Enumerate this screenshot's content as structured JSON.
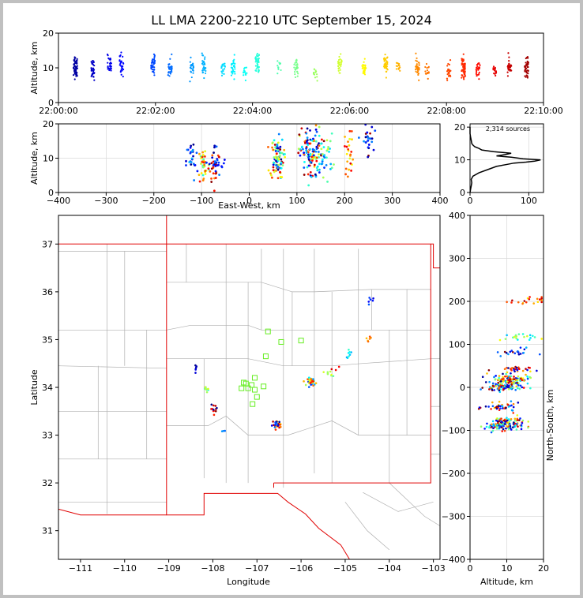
{
  "title": "LL LMA 2200-2210 UTC September 15, 2024",
  "chart_data": [
    {
      "type": "scatter",
      "panel": "altitude-vs-time",
      "ylabel": "Altitude, km",
      "ylim": [
        0,
        20
      ],
      "yticks": [
        "0",
        "10",
        "20"
      ],
      "xlim_minutes": [
        0,
        10
      ],
      "xticks": [
        "22:00:00",
        "22:02:00",
        "22:04:00",
        "22:06:00",
        "22:08:00",
        "22:10:00"
      ],
      "color_by": "time",
      "series": [
        {
          "minute": 0.35,
          "center": 10.5,
          "spread": 3.5,
          "count": 60
        },
        {
          "minute": 0.7,
          "center": 9.5,
          "spread": 3,
          "count": 30
        },
        {
          "minute": 1.05,
          "center": 11,
          "spread": 3,
          "count": 25
        },
        {
          "minute": 1.3,
          "center": 11,
          "spread": 3.5,
          "count": 30
        },
        {
          "minute": 1.95,
          "center": 11,
          "spread": 3,
          "count": 40
        },
        {
          "minute": 2.3,
          "center": 10,
          "spread": 3,
          "count": 30
        },
        {
          "minute": 2.75,
          "center": 10,
          "spread": 2.5,
          "count": 25
        },
        {
          "minute": 3.0,
          "center": 10.5,
          "spread": 3,
          "count": 30
        },
        {
          "minute": 3.4,
          "center": 9.5,
          "spread": 3,
          "count": 20
        },
        {
          "minute": 3.6,
          "center": 10,
          "spread": 3,
          "count": 30
        },
        {
          "minute": 3.85,
          "center": 9,
          "spread": 2,
          "count": 15
        },
        {
          "minute": 4.1,
          "center": 11,
          "spread": 4,
          "count": 40
        },
        {
          "minute": 4.55,
          "center": 10,
          "spread": 2,
          "count": 10
        },
        {
          "minute": 4.9,
          "center": 10,
          "spread": 2.5,
          "count": 25
        },
        {
          "minute": 5.3,
          "center": 8,
          "spread": 1.5,
          "count": 15
        },
        {
          "minute": 5.8,
          "center": 11,
          "spread": 3,
          "count": 30
        },
        {
          "minute": 6.3,
          "center": 10,
          "spread": 3,
          "count": 30
        },
        {
          "minute": 6.75,
          "center": 11,
          "spread": 3,
          "count": 40
        },
        {
          "minute": 7.0,
          "center": 10,
          "spread": 2,
          "count": 15
        },
        {
          "minute": 7.4,
          "center": 10,
          "spread": 3,
          "count": 30
        },
        {
          "minute": 7.6,
          "center": 9,
          "spread": 2,
          "count": 15
        },
        {
          "minute": 8.05,
          "center": 9,
          "spread": 3,
          "count": 25
        },
        {
          "minute": 8.35,
          "center": 10,
          "spread": 3.5,
          "count": 60
        },
        {
          "minute": 8.65,
          "center": 9.5,
          "spread": 2.5,
          "count": 25
        },
        {
          "minute": 9.0,
          "center": 9,
          "spread": 2,
          "count": 15
        },
        {
          "minute": 9.3,
          "center": 10,
          "spread": 3,
          "count": 25
        },
        {
          "minute": 9.65,
          "center": 10,
          "spread": 3,
          "count": 45
        }
      ]
    },
    {
      "type": "scatter",
      "panel": "altitude-vs-east-west",
      "ylabel": "Altitude, km",
      "xlabel": "East-West, km",
      "xlim": [
        -400,
        400
      ],
      "ylim": [
        0,
        20
      ],
      "xticks": [
        "−400",
        "−300",
        "−200",
        "−100",
        "0",
        "100",
        "200",
        "300",
        "400"
      ],
      "yticks": [
        "0",
        "10",
        "20"
      ],
      "clusters": [
        {
          "x": -120,
          "alt": 9,
          "xs": 6,
          "as": 3,
          "count": 25
        },
        {
          "x": -95,
          "alt": 8,
          "xs": 6,
          "as": 3,
          "count": 40
        },
        {
          "x": -72,
          "alt": 8,
          "xs": 6,
          "as": 3,
          "count": 40
        },
        {
          "x": -58,
          "alt": 8.5,
          "xs": 4,
          "as": 1,
          "count": 5
        },
        {
          "x": 58,
          "alt": 10,
          "xs": 7,
          "as": 3,
          "count": 90
        },
        {
          "x": 130,
          "alt": 11,
          "xs": 12,
          "as": 4,
          "count": 120
        },
        {
          "x": 160,
          "alt": 11,
          "xs": 8,
          "as": 3,
          "count": 30
        },
        {
          "x": 210,
          "alt": 12,
          "xs": 5,
          "as": 3.5,
          "count": 25
        },
        {
          "x": 248,
          "alt": 15,
          "xs": 6,
          "as": 2.5,
          "count": 25
        }
      ]
    },
    {
      "type": "line",
      "panel": "altitude-histogram",
      "annotation": "2,314 sources",
      "xlim": [
        0,
        125
      ],
      "ylim": [
        0,
        21
      ],
      "xticks": [
        "0",
        "100"
      ],
      "yticks": [
        "0",
        "10",
        "20"
      ],
      "x": [
        0,
        1,
        2,
        3,
        2,
        5,
        15,
        30,
        45,
        60,
        75,
        95,
        110,
        120,
        90,
        70,
        45,
        60,
        70,
        40,
        20,
        15,
        8,
        5,
        3,
        2,
        1,
        0,
        0
      ],
      "y": [
        0,
        1,
        2,
        3,
        4,
        5,
        6,
        7,
        8,
        8.5,
        9,
        9.3,
        9.6,
        10,
        10.3,
        10.8,
        11.2,
        11.6,
        12,
        12.5,
        13,
        13.5,
        14,
        14.5,
        15,
        16,
        17,
        18,
        20
      ]
    },
    {
      "type": "scatter",
      "panel": "plan-view-map",
      "xlabel": "Longitude",
      "ylabel": "Latitude",
      "xlim": [
        -111.5,
        -102.85
      ],
      "ylim": [
        30.4,
        37.6
      ],
      "xticks": [
        "−111",
        "−110",
        "−109",
        "−108",
        "−107",
        "−106",
        "−105",
        "−104",
        "−103"
      ],
      "yticks": [
        "31",
        "32",
        "33",
        "34",
        "35",
        "36",
        "37"
      ],
      "stations": [
        {
          "lon": -106.75,
          "lat": 35.17
        },
        {
          "lon": -106.45,
          "lat": 34.95
        },
        {
          "lon": -106.0,
          "lat": 34.98
        },
        {
          "lon": -106.8,
          "lat": 34.65
        },
        {
          "lon": -107.05,
          "lat": 34.2
        },
        {
          "lon": -107.25,
          "lat": 34.08
        },
        {
          "lon": -107.12,
          "lat": 34.05
        },
        {
          "lon": -107.35,
          "lat": 33.98
        },
        {
          "lon": -107.2,
          "lat": 33.98
        },
        {
          "lon": -107.05,
          "lat": 33.95
        },
        {
          "lon": -106.85,
          "lat": 34.02
        },
        {
          "lon": -107.0,
          "lat": 33.8
        },
        {
          "lon": -107.1,
          "lat": 33.65
        },
        {
          "lon": -107.3,
          "lat": 34.1
        }
      ],
      "clusters": [
        {
          "lon": -108.4,
          "lat": 34.4,
          "count": 6
        },
        {
          "lon": -108.15,
          "lat": 33.98,
          "count": 10
        },
        {
          "lon": -107.95,
          "lat": 33.55,
          "count": 12
        },
        {
          "lon": -107.75,
          "lat": 33.05,
          "count": 3
        },
        {
          "lon": -106.55,
          "lat": 33.22,
          "count": 30
        },
        {
          "lon": -105.75,
          "lat": 34.12,
          "count": 40
        },
        {
          "lon": -105.4,
          "lat": 34.28,
          "count": 8
        },
        {
          "lon": -105.2,
          "lat": 34.45,
          "count": 3
        },
        {
          "lon": -104.9,
          "lat": 34.7,
          "count": 8
        },
        {
          "lon": -104.5,
          "lat": 35.02,
          "count": 6
        },
        {
          "lon": -104.42,
          "lat": 35.8,
          "count": 6
        }
      ]
    },
    {
      "type": "scatter",
      "panel": "north-south-vs-altitude",
      "xlabel": "Altitude, km",
      "ylabel": "North-South, km",
      "xlim": [
        0,
        20
      ],
      "ylim": [
        -400,
        400
      ],
      "xticks": [
        "0",
        "10",
        "20"
      ],
      "yticks": [
        "−400",
        "−300",
        "−200",
        "−100",
        "0",
        "100",
        "200",
        "300",
        "400"
      ],
      "clusters": [
        {
          "ns": -90,
          "alt": 9,
          "count": 90
        },
        {
          "ns": -78,
          "alt": 10,
          "count": 50
        },
        {
          "ns": -47,
          "alt": 9,
          "count": 40
        },
        {
          "ns": 0,
          "alt": 9,
          "count": 80
        },
        {
          "ns": 18,
          "alt": 11,
          "count": 100
        },
        {
          "ns": 40,
          "alt": 11,
          "count": 30
        },
        {
          "ns": 82,
          "alt": 12,
          "count": 20
        },
        {
          "ns": 115,
          "alt": 13,
          "count": 20
        },
        {
          "ns": 200,
          "alt": 16,
          "count": 20
        }
      ]
    }
  ]
}
